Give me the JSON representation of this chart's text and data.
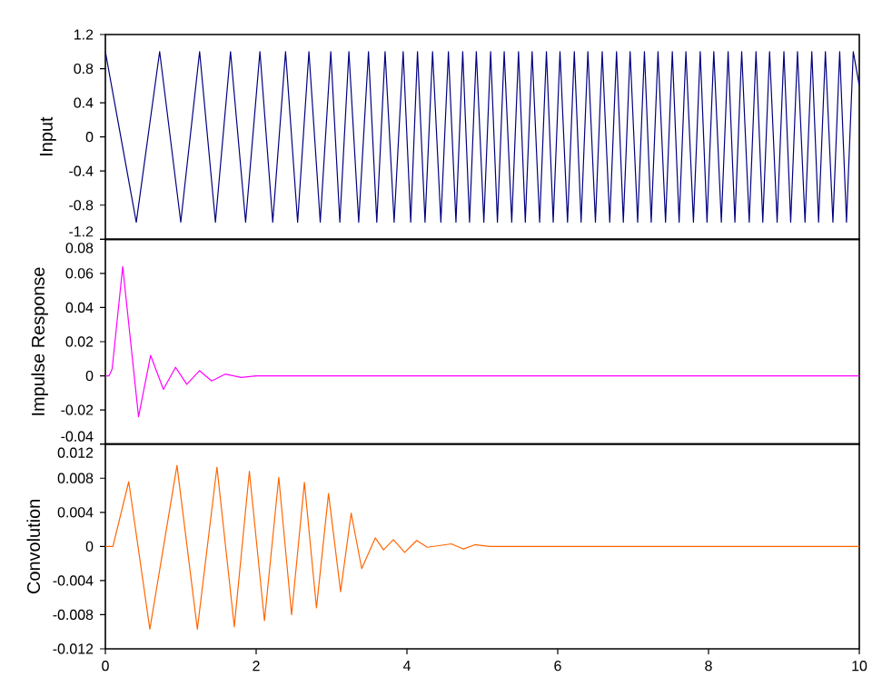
{
  "chart_data": [
    {
      "type": "line",
      "ylabel": "Input",
      "color": "#000080",
      "xlim": [
        0,
        10
      ],
      "ylim": [
        -1.2,
        1.2
      ],
      "yticks": [
        -1.2,
        -0.8,
        -0.4,
        0,
        0.4,
        0.8,
        1.2
      ],
      "tick_labels": "y",
      "x": [
        0,
        0.41,
        0.72,
        1.0,
        1.25,
        1.46,
        1.66,
        1.86,
        2.05,
        2.22,
        2.39,
        2.55,
        2.7,
        2.85,
        2.99,
        3.11,
        3.23,
        3.36,
        3.49,
        3.6,
        3.71,
        3.83,
        3.95,
        4.05,
        4.14,
        4.24,
        4.34,
        4.45,
        4.55,
        4.65,
        4.74,
        4.83,
        4.92,
        5.02,
        5.11,
        5.2,
        5.29,
        5.39,
        5.48,
        5.57,
        5.66,
        5.76,
        5.85,
        5.94,
        6.03,
        6.13,
        6.22,
        6.31,
        6.4,
        6.5,
        6.59,
        6.69,
        6.78,
        6.87,
        6.96,
        7.06,
        7.15,
        7.24,
        7.33,
        7.43,
        7.52,
        7.61,
        7.7,
        7.8,
        7.89,
        7.98,
        8.07,
        8.17,
        8.26,
        8.35,
        8.44,
        8.54,
        8.63,
        8.72,
        8.81,
        8.91,
        9.0,
        9.09,
        9.18,
        9.28,
        9.37,
        9.46,
        9.55,
        9.65,
        9.74,
        9.83,
        9.92,
        10
      ],
      "values": [
        1,
        -1,
        1,
        -1,
        1,
        -1,
        1,
        -1,
        1,
        -1,
        1,
        -1,
        1,
        -1,
        1,
        -1,
        1,
        -1,
        1,
        -1,
        1,
        -1,
        1,
        -1,
        1,
        -1,
        1,
        -1,
        1,
        -1,
        1,
        -1,
        1,
        -1,
        1,
        -1,
        1,
        -1,
        1,
        -1,
        1,
        -1,
        1,
        -1,
        1,
        -1,
        1,
        -1,
        1,
        -1,
        1,
        -1,
        1,
        -1,
        1,
        -1,
        1,
        -1,
        1,
        -1,
        1,
        -1,
        1,
        -1,
        1,
        -1,
        1,
        -1,
        1,
        -1,
        1,
        -1,
        1,
        -1,
        1,
        -1,
        1,
        -1,
        1,
        -1,
        1,
        -1,
        1,
        -1,
        1,
        -1,
        1,
        0.6
      ]
    },
    {
      "type": "line",
      "ylabel": "Impulse Response",
      "color": "#ff00ff",
      "xlim": [
        0,
        10
      ],
      "ylim": [
        -0.04,
        0.08
      ],
      "yticks": [
        -0.04,
        -0.02,
        0,
        0.02,
        0.04,
        0.06,
        0.08
      ],
      "tick_labels": "y",
      "x": [
        0,
        0.05,
        0.09,
        0.23,
        0.44,
        0.6,
        0.77,
        0.93,
        1.08,
        1.25,
        1.41,
        1.59,
        1.8,
        2.0,
        10
      ],
      "values": [
        0,
        0,
        0.004,
        0.064,
        -0.024,
        0.012,
        -0.008,
        0.005,
        -0.005,
        0.003,
        -0.003,
        0.001,
        -0.001,
        0,
        0
      ]
    },
    {
      "type": "line",
      "ylabel": "Convolution",
      "color": "#ff6600",
      "xlim": [
        0,
        10
      ],
      "xticks": [
        0,
        2,
        4,
        6,
        8,
        10
      ],
      "ylim": [
        -0.012,
        0.012
      ],
      "yticks": [
        -0.012,
        -0.008,
        -0.004,
        0,
        0.004,
        0.008,
        0.012
      ],
      "x": [
        0,
        0.1,
        0.31,
        0.59,
        0.95,
        1.22,
        1.48,
        1.71,
        1.91,
        2.11,
        2.3,
        2.47,
        2.64,
        2.8,
        2.96,
        3.12,
        3.26,
        3.4,
        3.58,
        3.69,
        3.82,
        3.97,
        4.13,
        4.27,
        4.59,
        4.75,
        4.9,
        5.1,
        10
      ],
      "values": [
        0,
        0,
        0.0076,
        -0.0097,
        0.0095,
        -0.0097,
        0.0093,
        -0.0094,
        0.0088,
        -0.0087,
        0.0081,
        -0.008,
        0.0075,
        -0.0072,
        0.0062,
        -0.0053,
        0.0039,
        -0.0026,
        0.001,
        -0.0004,
        0.0008,
        -0.0007,
        0.0007,
        -0.0001,
        0.0003,
        -0.0003,
        0.0002,
        0,
        0
      ]
    }
  ]
}
